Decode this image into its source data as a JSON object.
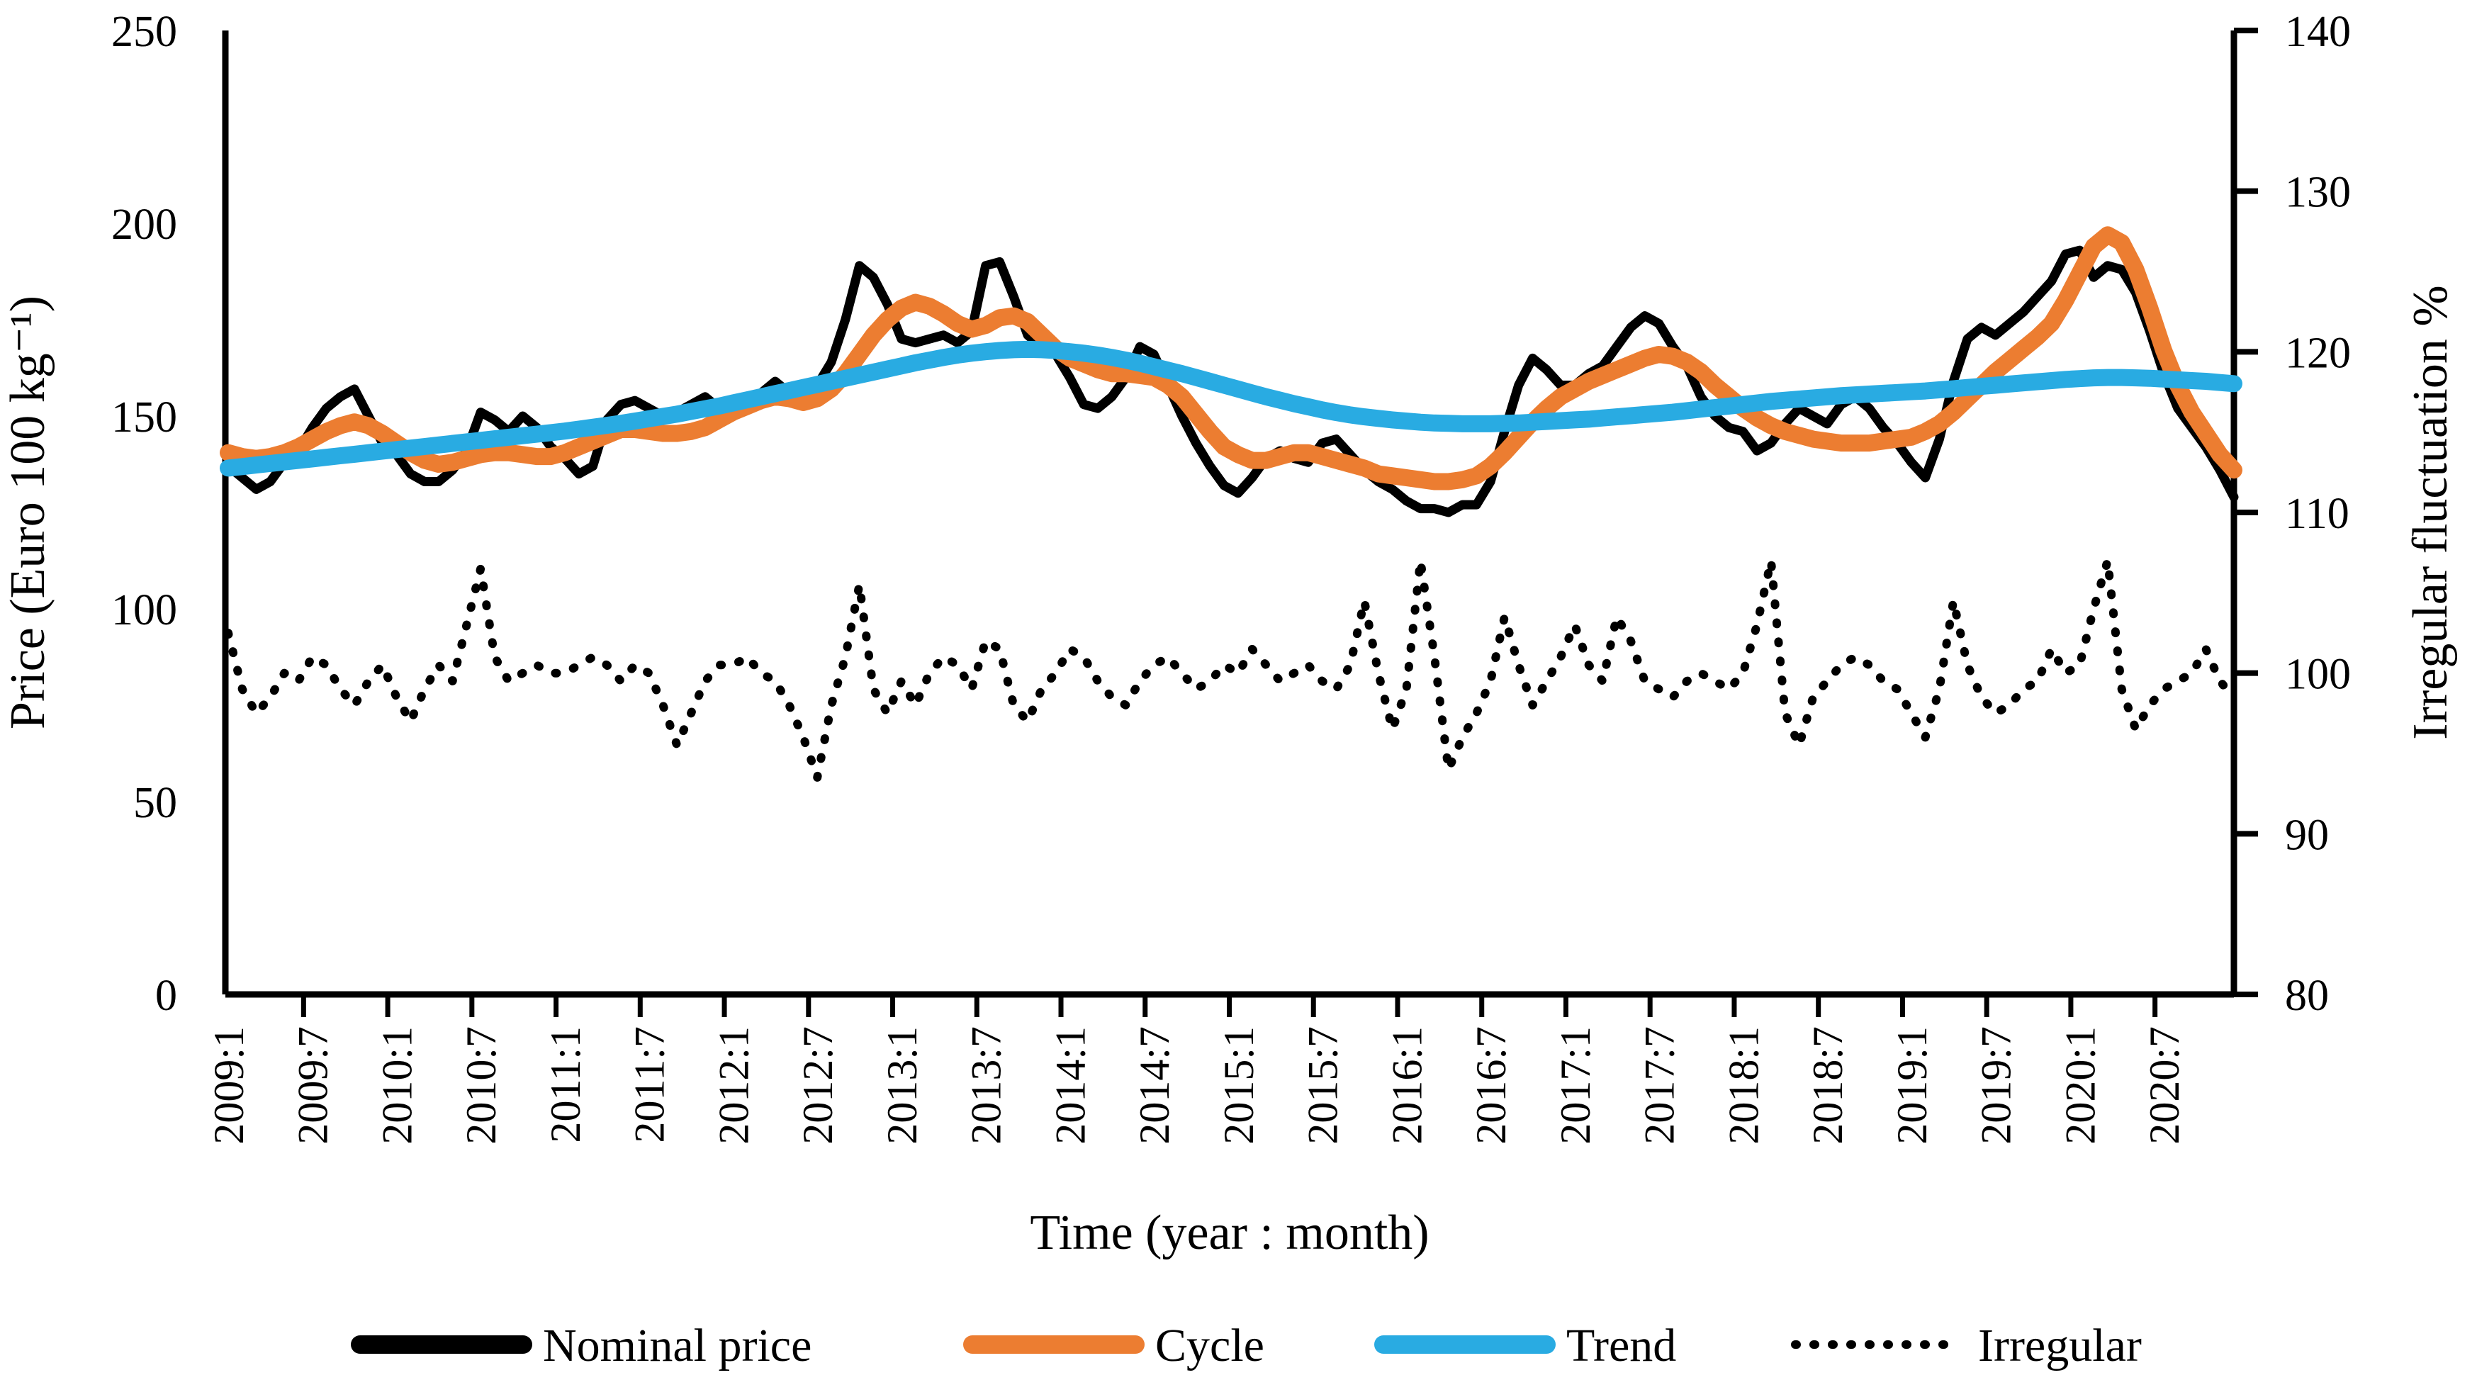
{
  "chart_data": {
    "type": "line",
    "title": "",
    "x_axis": {
      "title": "Time (year : month)",
      "tick_labels": [
        "2009:1",
        "2009:7",
        "2010:1",
        "2010:7",
        "2011:1",
        "2011:7",
        "2012:1",
        "2012:7",
        "2013:1",
        "2013:7",
        "2014:1",
        "2014:7",
        "2015:1",
        "2015:7",
        "2016:1",
        "2016:7",
        "2017:1",
        "2017:7",
        "2018:1",
        "2018:7",
        "2019:1",
        "2019:7",
        "2020:1",
        "2020:7"
      ],
      "months_start": "2009:1",
      "months_end": "2020:12",
      "label_every_n_months": 6
    },
    "left_axis": {
      "title": "Price (Euro 100 kg⁻¹)",
      "min": 0,
      "max": 250,
      "ticks": [
        0,
        50,
        100,
        150,
        200,
        250
      ]
    },
    "right_axis": {
      "title": "Irregular fluctuation %",
      "min": 80,
      "max": 140,
      "ticks": [
        80,
        90,
        100,
        110,
        120,
        130,
        140
      ]
    },
    "grid": false,
    "legend_position": "bottom",
    "series": [
      {
        "name": "Nominal price",
        "axis": "left",
        "color": "#000000",
        "style": "solid",
        "width": 13,
        "values": [
          137,
          134,
          131,
          133,
          138,
          141,
          147,
          152,
          155,
          157,
          150,
          143,
          140,
          135,
          133,
          133,
          136,
          141,
          151,
          149,
          146,
          150,
          147,
          142,
          139,
          135,
          137,
          149,
          153,
          154,
          152,
          150,
          151,
          153,
          155,
          152,
          150,
          153,
          156,
          159,
          156,
          153,
          158,
          164,
          175,
          189,
          186,
          179,
          170,
          169,
          170,
          171,
          169,
          172,
          189,
          190,
          181,
          171,
          168,
          166,
          160,
          153,
          152,
          155,
          160,
          168,
          166,
          158,
          150,
          143,
          137,
          132,
          130,
          134,
          139,
          141,
          139,
          138,
          143,
          144,
          140,
          136,
          133,
          131,
          128,
          126,
          126,
          125,
          127,
          127,
          133,
          146,
          158,
          165,
          162,
          158,
          158,
          161,
          163,
          168,
          173,
          176,
          174,
          168,
          163,
          155,
          150,
          147,
          146,
          141,
          143,
          148,
          152,
          150,
          148,
          153,
          155,
          152,
          147,
          143,
          138,
          134,
          144,
          159,
          170,
          173,
          171,
          174,
          177,
          181,
          185,
          192,
          193,
          186,
          189,
          188,
          182,
          172,
          161,
          152,
          147,
          142,
          136,
          129
        ]
      },
      {
        "name": "Cycle",
        "axis": "left",
        "color": "#EC7D31",
        "style": "solid",
        "width": 24,
        "values": [
          140.5,
          139.5,
          139,
          139.5,
          140.5,
          142,
          144,
          146,
          147.5,
          148.5,
          147.5,
          145.5,
          143,
          140.5,
          138.5,
          137.5,
          138,
          139,
          140,
          140.5,
          140.5,
          140,
          139.5,
          139.5,
          140.5,
          142,
          143.5,
          145,
          146.5,
          146.5,
          146,
          145.5,
          145.5,
          146,
          147,
          149,
          151,
          152.5,
          154,
          155,
          154.5,
          153.5,
          154.5,
          157,
          161,
          166,
          171,
          175,
          178,
          179.5,
          178.5,
          176.5,
          174,
          172.5,
          173.5,
          175.5,
          176,
          174.5,
          171,
          167.5,
          165,
          163.5,
          162,
          161,
          161,
          160.5,
          160,
          158,
          155,
          150.5,
          146,
          142,
          140,
          138.5,
          138.5,
          139.5,
          140.5,
          140.5,
          139.5,
          138.5,
          137.5,
          136.5,
          135,
          134.5,
          134,
          133.5,
          133,
          133,
          133.5,
          134.5,
          137,
          140.5,
          144.5,
          148.5,
          152,
          155,
          157,
          159,
          160.5,
          162,
          163.5,
          165,
          166,
          165.5,
          164,
          161.5,
          158,
          155,
          152,
          149.5,
          147.5,
          146,
          145,
          144,
          143.5,
          143,
          143,
          143,
          143.5,
          144,
          144.5,
          146,
          148,
          151,
          154.5,
          158,
          161.5,
          164.5,
          167.5,
          170.5,
          174,
          180,
          187,
          194,
          197,
          195,
          188,
          178,
          167,
          158,
          151,
          145.5,
          140,
          136
        ]
      },
      {
        "name": "Trend",
        "axis": "left",
        "color": "#29ABE2",
        "style": "solid",
        "width": 24,
        "values": [
          136.5,
          136.9,
          137.3,
          137.7,
          138.1,
          138.5,
          138.9,
          139.3,
          139.7,
          140.1,
          140.5,
          140.9,
          141.3,
          141.7,
          142.1,
          142.5,
          142.9,
          143.3,
          143.7,
          144.1,
          144.5,
          144.9,
          145.3,
          145.7,
          146.1,
          146.6,
          147.1,
          147.6,
          148.1,
          148.7,
          149.3,
          149.9,
          150.5,
          151.2,
          151.9,
          152.6,
          153.4,
          154.2,
          155,
          155.8,
          156.6,
          157.4,
          158.2,
          159,
          159.8,
          160.6,
          161.4,
          162.2,
          163,
          163.8,
          164.5,
          165.2,
          165.8,
          166.3,
          166.7,
          167,
          167.2,
          167.3,
          167.2,
          167,
          166.7,
          166.3,
          165.8,
          165.2,
          164.5,
          163.7,
          162.8,
          161.9,
          161,
          160,
          159,
          158,
          157,
          156,
          155,
          154.1,
          153.2,
          152.4,
          151.6,
          150.9,
          150.3,
          149.8,
          149.4,
          149,
          148.7,
          148.4,
          148.2,
          148.1,
          148,
          148,
          148,
          148.1,
          148.2,
          148.4,
          148.6,
          148.8,
          149,
          149.2,
          149.5,
          149.8,
          150.1,
          150.4,
          150.7,
          151,
          151.4,
          151.8,
          152.2,
          152.6,
          153,
          153.4,
          153.8,
          154.1,
          154.4,
          154.7,
          155,
          155.3,
          155.5,
          155.7,
          155.9,
          156.1,
          156.3,
          156.5,
          156.8,
          157.1,
          157.4,
          157.7,
          158,
          158.3,
          158.6,
          158.9,
          159.2,
          159.5,
          159.7,
          159.9,
          160,
          160,
          159.9,
          159.8,
          159.6,
          159.4,
          159.2,
          159,
          158.7,
          158.4
        ]
      },
      {
        "name": "Irregular",
        "axis": "right",
        "color": "#000000",
        "style": "dotted",
        "width": 12,
        "values": [
          102.5,
          99,
          97.5,
          98.5,
          100,
          99.5,
          101,
          100.5,
          99,
          98,
          99.5,
          100.5,
          98.5,
          97,
          99,
          100.5,
          99.5,
          103,
          106.5,
          101,
          99.5,
          100,
          100.5,
          100,
          100,
          100.5,
          101,
          100.5,
          99.5,
          100.5,
          100,
          98,
          95.5,
          97.5,
          99.5,
          100.5,
          100.5,
          101,
          100,
          99.5,
          98,
          96,
          93.5,
          98,
          101,
          105.5,
          99,
          97.5,
          99.5,
          98,
          100,
          101,
          100.5,
          99,
          102,
          101.5,
          98,
          97,
          99,
          100,
          101.5,
          101,
          99.5,
          98.5,
          98,
          99.5,
          100.5,
          101,
          100,
          99,
          99.5,
          100.5,
          100,
          101.5,
          100.5,
          99.5,
          100,
          100.5,
          99.5,
          99,
          100.5,
          104.5,
          100,
          96.5,
          99,
          107,
          101,
          94,
          96,
          97.5,
          99.5,
          103.5,
          100.5,
          98,
          99.5,
          101,
          103,
          100.5,
          99.5,
          103.5,
          102,
          99.5,
          99,
          98.5,
          99.5,
          100,
          99.5,
          99,
          100,
          103,
          107,
          97.5,
          95.5,
          98.5,
          99.5,
          100.5,
          101,
          100.5,
          99.5,
          99,
          97.5,
          96,
          99,
          104.5,
          100.5,
          98.5,
          97.5,
          98,
          99,
          99.5,
          101.5,
          100,
          100.5,
          104,
          107,
          99,
          96.5,
          98,
          99,
          99.5,
          100,
          101.5,
          99.5,
          98.5
        ]
      }
    ]
  },
  "legend": {
    "items": [
      {
        "label": "Nominal price",
        "color": "#000000",
        "style": "solid"
      },
      {
        "label": "Cycle",
        "color": "#EC7D31",
        "style": "solid"
      },
      {
        "label": "Trend",
        "color": "#29ABE2",
        "style": "solid"
      },
      {
        "label": "Irregular",
        "color": "#000000",
        "style": "dotted"
      }
    ]
  }
}
